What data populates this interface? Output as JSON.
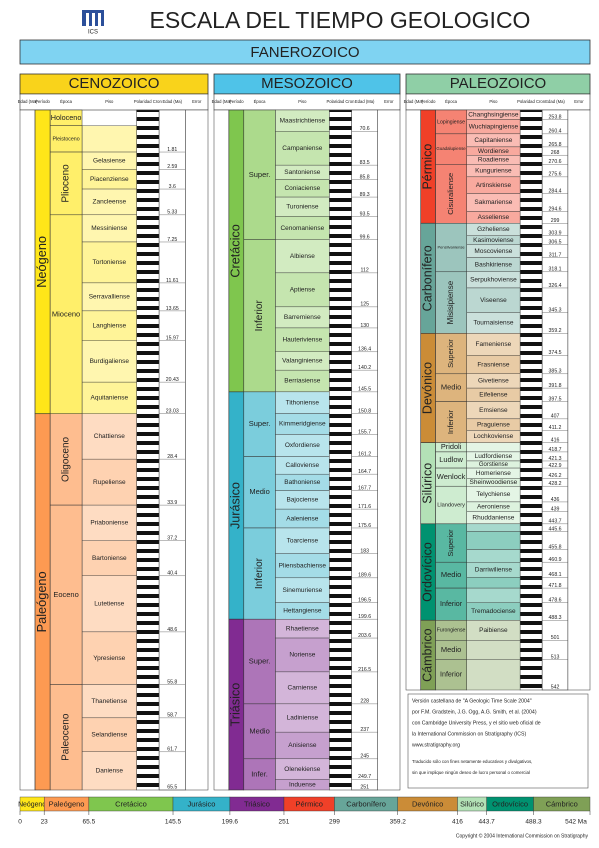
{
  "header": {
    "title": "ESCALA DEL TIEMPO GEOLOGICO",
    "logo": "ICS",
    "eon": "FANEROZOICO"
  },
  "column_headers": [
    "Edad (Ma)",
    "Período",
    "Época",
    "Piso",
    "Polaridad Cron",
    "Edad (Ma)",
    "Error"
  ],
  "columns": [
    {
      "era": "CENOZOICO",
      "color": "#f9d31b",
      "periods": [
        {
          "name": "Neógeno",
          "color": "#ffe619",
          "epochs": [
            {
              "name": "Holoceno",
              "stages": []
            },
            {
              "name": "Pleistoceno",
              "stages": [
                {
                  "age": 1.81
                }
              ]
            },
            {
              "name": "Plioceno",
              "stages": [
                {
                  "name": "Gelasiense",
                  "age": 2.59
                },
                {
                  "name": "Piacenziense",
                  "age": 3.6
                },
                {
                  "name": "Zancleense",
                  "age": 5.33
                }
              ]
            },
            {
              "name": "Mioceno",
              "stages": [
                {
                  "name": "Messiniense",
                  "age": 7.25
                },
                {
                  "name": "Tortoniense",
                  "age": 11.61
                },
                {
                  "name": "Serravalliense",
                  "age": 13.65
                },
                {
                  "name": "Langhiense",
                  "age": 15.97
                },
                {
                  "name": "Burdigaliense",
                  "age": 20.43
                },
                {
                  "name": "Aquitaniense",
                  "age": 23.03
                }
              ]
            }
          ]
        },
        {
          "name": "Paleógeno",
          "color": "#fd9a52",
          "epochs": [
            {
              "name": "Oligoceno",
              "stages": [
                {
                  "name": "Chattiense",
                  "age": 28.4
                },
                {
                  "name": "Rupeliense",
                  "age": 33.9
                }
              ]
            },
            {
              "name": "Eoceno",
              "stages": [
                {
                  "name": "Priaboniense",
                  "age": 37.2
                },
                {
                  "name": "Bartoniense",
                  "age": 40.4
                },
                {
                  "name": "Lutetiense",
                  "age": 48.6
                },
                {
                  "name": "Ypresiense",
                  "age": 55.8
                }
              ]
            },
            {
              "name": "Paleoceno",
              "stages": [
                {
                  "name": "Thanetiense",
                  "age": 58.7
                },
                {
                  "name": "Selandiense",
                  "age": 61.7
                },
                {
                  "name": "Daniense",
                  "age": 65.5
                }
              ]
            }
          ]
        }
      ]
    },
    {
      "era": "MESOZOICO",
      "color": "#4fc3e8",
      "periods": [
        {
          "name": "Cretácico",
          "color": "#7fc64e",
          "epochs": [
            {
              "name": "Super.",
              "stages": [
                {
                  "name": "Maastrichtiense",
                  "age": 70.6
                },
                {
                  "name": "Campaniense",
                  "age": 83.5
                },
                {
                  "name": "Santoniense",
                  "age": 85.8
                },
                {
                  "name": "Coniaciense",
                  "age": 89.3
                },
                {
                  "name": "Turoniense",
                  "age": 93.5
                },
                {
                  "name": "Cenomaniense",
                  "age": 99.6
                }
              ]
            },
            {
              "name": "Inferior",
              "stages": [
                {
                  "name": "Albiense",
                  "age": 112.0
                },
                {
                  "name": "Aptiense",
                  "age": 125.0
                },
                {
                  "name": "Barremiense",
                  "age": 130.0
                },
                {
                  "name": "Hauteriviense",
                  "age": 136.4
                },
                {
                  "name": "Valanginiense",
                  "age": 140.2
                },
                {
                  "name": "Berriasiense",
                  "age": 145.5
                }
              ]
            }
          ]
        },
        {
          "name": "Jurásico",
          "color": "#34b2c9",
          "epochs": [
            {
              "name": "Super.",
              "stages": [
                {
                  "name": "Tithoniense",
                  "age": 150.8
                },
                {
                  "name": "Kimmeridgiense",
                  "age": 155.7
                },
                {
                  "name": "Oxfordiense",
                  "age": 161.2
                }
              ]
            },
            {
              "name": "Medio",
              "stages": [
                {
                  "name": "Calloviense",
                  "age": 164.7
                },
                {
                  "name": "Bathoniense",
                  "age": 167.7
                },
                {
                  "name": "Bajociense",
                  "age": 171.6
                },
                {
                  "name": "Aaleniense",
                  "age": 175.6
                }
              ]
            },
            {
              "name": "Inferior",
              "stages": [
                {
                  "name": "Toarciense",
                  "age": 183.0
                },
                {
                  "name": "Pliensbachiense",
                  "age": 189.6
                },
                {
                  "name": "Sinemuriense",
                  "age": 196.5
                },
                {
                  "name": "Hettangiense",
                  "age": 199.6
                }
              ]
            }
          ]
        },
        {
          "name": "Triásico",
          "color": "#812b92",
          "epochs": [
            {
              "name": "Super.",
              "stages": [
                {
                  "name": "Rhaetiense",
                  "age": 203.6
                },
                {
                  "name": "Noriense",
                  "age": 216.5
                },
                {
                  "name": "Carniense",
                  "age": 228.0
                }
              ]
            },
            {
              "name": "Medio",
              "stages": [
                {
                  "name": "Ladiniense",
                  "age": 237.0
                },
                {
                  "name": "Anisiense",
                  "age": 245.0
                }
              ]
            },
            {
              "name": "Infer.",
              "stages": [
                {
                  "name": "Olenekiense",
                  "age": 249.7
                },
                {
                  "name": "Induense",
                  "age": 251.0
                }
              ]
            }
          ]
        }
      ]
    },
    {
      "era": "PALEOZOICO",
      "color": "#8fcfa6",
      "periods": [
        {
          "name": "Pérmico",
          "color": "#f04028",
          "epochs": [
            {
              "name": "Lopingiense",
              "stages": [
                {
                  "name": "Changhsingiense",
                  "age": 253.8
                },
                {
                  "name": "Wuchiapingiense",
                  "age": 260.4
                }
              ]
            },
            {
              "name": "Guadalupiense",
              "stages": [
                {
                  "name": "Capitaniense",
                  "age": 265.8
                },
                {
                  "name": "Wordiense",
                  "age": 268.0
                },
                {
                  "name": "Roadiense",
                  "age": 270.6
                }
              ]
            },
            {
              "name": "Cisuraliense",
              "stages": [
                {
                  "name": "Kunguriense",
                  "age": 275.6
                },
                {
                  "name": "Artinskiense",
                  "age": 284.4
                },
                {
                  "name": "Sakmariense",
                  "age": 294.6
                },
                {
                  "name": "Asseliense",
                  "age": 299.0
                }
              ]
            }
          ]
        },
        {
          "name": "Carbonífero",
          "color": "#67a599",
          "epochs": [
            {
              "name": "Pensilvaniense",
              "stages": [
                {
                  "name": "Gzheliense",
                  "age": 303.9
                },
                {
                  "name": "Kasimoviense",
                  "age": 306.5
                },
                {
                  "name": "Moscoviense",
                  "age": 311.7
                },
                {
                  "name": "Bashkiriense",
                  "age": 318.1
                }
              ]
            },
            {
              "name": "Misisipiense",
              "stages": [
                {
                  "name": "Serpukhoviense",
                  "age": 326.4
                },
                {
                  "name": "Viseense",
                  "age": 345.3
                },
                {
                  "name": "Tournaisiense",
                  "age": 359.2
                }
              ]
            }
          ]
        },
        {
          "name": "Devónico",
          "color": "#cb8c37",
          "epochs": [
            {
              "name": "Superior",
              "stages": [
                {
                  "name": "Fameniense",
                  "age": 374.5
                },
                {
                  "name": "Frasniense",
                  "age": 385.3
                }
              ]
            },
            {
              "name": "Medio",
              "stages": [
                {
                  "name": "Givetiense",
                  "age": 391.8
                },
                {
                  "name": "Eifeliense",
                  "age": 397.5
                }
              ]
            },
            {
              "name": "Inferior",
              "stages": [
                {
                  "name": "Emsiense",
                  "age": 407.0
                },
                {
                  "name": "Praguiense",
                  "age": 411.2
                },
                {
                  "name": "Lochkoviense",
                  "age": 416.0
                }
              ]
            }
          ]
        },
        {
          "name": "Silúrico",
          "color": "#b3e1b6",
          "epochs": [
            {
              "name": "Pridoli",
              "stages": [
                {
                  "age": 418.7
                }
              ]
            },
            {
              "name": "Ludlow",
              "stages": [
                {
                  "name": "Ludfordiense",
                  "age": 421.3
                },
                {
                  "name": "Gorstiense",
                  "age": 422.9
                }
              ]
            },
            {
              "name": "Wenlock",
              "stages": [
                {
                  "name": "Homeriense",
                  "age": 426.2
                },
                {
                  "name": "Sheinwoodiense",
                  "age": 428.2
                }
              ]
            },
            {
              "name": "Llandovery",
              "stages": [
                {
                  "name": "Telychiense",
                  "age": 436.0
                },
                {
                  "name": "Aeroniense",
                  "age": 439.0
                },
                {
                  "name": "Rhuddaniense",
                  "age": 443.7
                }
              ]
            }
          ]
        },
        {
          "name": "Ordovícico",
          "color": "#009270",
          "epochs": [
            {
              "name": "Superior",
              "stages": [
                {
                  "age": 445.6
                },
                {
                  "age": 455.8
                },
                {
                  "age": 460.9
                }
              ]
            },
            {
              "name": "Medio",
              "stages": [
                {
                  "name": "Darriwiliense",
                  "age": 468.1
                },
                {
                  "age": 471.8
                }
              ]
            },
            {
              "name": "Inferior",
              "stages": [
                {
                  "age": 478.6
                },
                {
                  "name": "Tremadociense",
                  "age": 488.3
                }
              ]
            }
          ]
        },
        {
          "name": "Cámbrico",
          "color": "#7fa056",
          "epochs": [
            {
              "name": "Furongiense",
              "stages": [
                {
                  "name": "Paibiense",
                  "age": 501.0
                }
              ]
            },
            {
              "name": "Medio",
              "stages": [
                {
                  "age": 513.0
                }
              ]
            },
            {
              "name": "Inferior",
              "stages": [
                {
                  "age": 542.0
                }
              ]
            }
          ]
        }
      ]
    }
  ],
  "timeline": {
    "xlim": [
      0,
      542
    ],
    "periods": [
      {
        "name": "Neógeno",
        "color": "#ffe619"
      },
      {
        "name": "Paleógeno",
        "color": "#fd9a52"
      },
      {
        "name": "Cretácico",
        "color": "#7fc64e"
      },
      {
        "name": "Jurásico",
        "color": "#34b2c9"
      },
      {
        "name": "Triásico",
        "color": "#812b92"
      },
      {
        "name": "Pérmico",
        "color": "#f04028"
      },
      {
        "name": "Carbonífero",
        "color": "#67a599"
      },
      {
        "name": "Devónico",
        "color": "#cb8c37"
      },
      {
        "name": "Silúrico",
        "color": "#b3e1b6"
      },
      {
        "name": "Ordovícico",
        "color": "#009270"
      },
      {
        "name": "Cámbrico",
        "color": "#7fa056"
      }
    ],
    "ticks": [
      0,
      23,
      65.5,
      145.5,
      199.6,
      251,
      299,
      359.2,
      416,
      443.7,
      488.3,
      {
        "value": 542,
        "label": "542 Ma"
      }
    ]
  },
  "credits": [
    "Versión castellana de \"A Geologic Time Scale 2004\"",
    "por F.M. Gradstein, J.G. Ogg, A.G. Smith, et al. (2004)",
    "con Cambridge University Press, y el sitio web oficial de",
    "la International Commission on Stratigraphy (ICS)",
    "www.stratigraphy.org",
    "Traducido sólo con fines netamente educativos y divulgativos,",
    "sin que implique ningún deseo de lucro personal o comercial"
  ],
  "copyright": "Copyright © 2004 International Commission on Stratigraphy"
}
